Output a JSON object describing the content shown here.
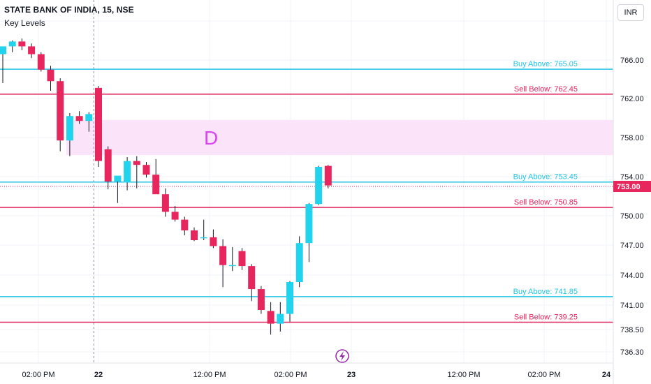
{
  "header": {
    "title": "STATE BANK OF INDIA, 15, NSE",
    "indicator": "Key Levels",
    "currency": "INR"
  },
  "colors": {
    "up": "#22d3ee",
    "down": "#e8265e",
    "buy_line": "#22c3e6",
    "sell_line": "#e0245e",
    "zone": "#fbe3fa",
    "zone_label": "#d946ef",
    "grid": "#f0f3fa",
    "axis_text": "#131722",
    "price_badge": "#e8265e",
    "event_icon": "#9c27b0"
  },
  "chart_data": {
    "type": "candlestick",
    "title": "STATE BANK OF INDIA, 15, NSE",
    "ylim": [
      735.5,
      770
    ],
    "y_ticks": [
      "736.30",
      "738.50",
      "741.00",
      "744.00",
      "747.00",
      "750.00",
      "754.00",
      "758.00",
      "762.00",
      "766.00"
    ],
    "x_ticks": [
      "02:00 PM",
      "22",
      "12:00 PM",
      "02:00 PM",
      "23",
      "12:00 PM",
      "02:00 PM",
      "24"
    ],
    "last_price": "753.00",
    "levels": [
      {
        "label": "Buy Above: 765.05",
        "value": 765.05,
        "kind": "buy"
      },
      {
        "label": "Sell Below: 762.45",
        "value": 762.45,
        "kind": "sell"
      },
      {
        "label": "Buy Above: 753.45",
        "value": 753.45,
        "kind": "buy"
      },
      {
        "label": "Sell Below: 750.85",
        "value": 750.85,
        "kind": "sell"
      },
      {
        "label": "Buy Above: 741.85",
        "value": 741.85,
        "kind": "buy"
      },
      {
        "label": "Sell Below: 739.25",
        "value": 739.25,
        "kind": "sell"
      }
    ],
    "zone": {
      "label": "D",
      "from": 756.2,
      "to": 759.8
    },
    "session_break_index": 10,
    "candles": [
      {
        "o": 766.6,
        "h": 767.2,
        "l": 763.6,
        "c": 767.4
      },
      {
        "o": 767.4,
        "h": 768.0,
        "l": 766.8,
        "c": 767.9
      },
      {
        "o": 767.9,
        "h": 768.2,
        "l": 767.0,
        "c": 767.4
      },
      {
        "o": 767.4,
        "h": 767.7,
        "l": 766.2,
        "c": 766.6
      },
      {
        "o": 766.6,
        "h": 766.8,
        "l": 764.8,
        "c": 765.0
      },
      {
        "o": 765.0,
        "h": 765.4,
        "l": 762.8,
        "c": 763.8
      },
      {
        "o": 763.8,
        "h": 764.1,
        "l": 756.6,
        "c": 757.7
      },
      {
        "o": 757.7,
        "h": 760.5,
        "l": 756.1,
        "c": 760.2
      },
      {
        "o": 760.2,
        "h": 760.7,
        "l": 759.4,
        "c": 759.7
      },
      {
        "o": 759.7,
        "h": 760.6,
        "l": 758.6,
        "c": 760.4
      },
      {
        "o": 763.1,
        "h": 763.3,
        "l": 755.0,
        "c": 755.6
      },
      {
        "o": 756.8,
        "h": 757.1,
        "l": 752.7,
        "c": 753.5
      },
      {
        "o": 753.5,
        "h": 753.8,
        "l": 751.3,
        "c": 754.1
      },
      {
        "o": 753.4,
        "h": 756.0,
        "l": 752.6,
        "c": 755.6
      },
      {
        "o": 755.6,
        "h": 756.1,
        "l": 752.8,
        "c": 755.2
      },
      {
        "o": 755.2,
        "h": 755.5,
        "l": 753.9,
        "c": 754.2
      },
      {
        "o": 754.2,
        "h": 755.8,
        "l": 752.3,
        "c": 752.2
      },
      {
        "o": 752.2,
        "h": 752.8,
        "l": 749.9,
        "c": 750.4
      },
      {
        "o": 750.4,
        "h": 751.0,
        "l": 749.4,
        "c": 749.6
      },
      {
        "o": 749.6,
        "h": 749.9,
        "l": 748.0,
        "c": 748.5
      },
      {
        "o": 748.5,
        "h": 748.8,
        "l": 747.4,
        "c": 747.5
      },
      {
        "o": 747.8,
        "h": 749.6,
        "l": 747.5,
        "c": 747.8
      },
      {
        "o": 747.8,
        "h": 748.6,
        "l": 746.7,
        "c": 746.9
      },
      {
        "o": 746.9,
        "h": 747.6,
        "l": 742.8,
        "c": 745.0
      },
      {
        "o": 745.0,
        "h": 746.8,
        "l": 744.4,
        "c": 745.0
      },
      {
        "o": 746.4,
        "h": 746.7,
        "l": 744.5,
        "c": 744.9
      },
      {
        "o": 744.9,
        "h": 745.1,
        "l": 741.4,
        "c": 742.6
      },
      {
        "o": 742.6,
        "h": 742.9,
        "l": 740.1,
        "c": 740.5
      },
      {
        "o": 740.4,
        "h": 741.3,
        "l": 738.0,
        "c": 739.1
      },
      {
        "o": 739.1,
        "h": 741.3,
        "l": 738.3,
        "c": 740.1
      },
      {
        "o": 740.1,
        "h": 743.4,
        "l": 739.3,
        "c": 743.3
      },
      {
        "o": 743.3,
        "h": 747.9,
        "l": 742.8,
        "c": 747.2
      },
      {
        "o": 747.2,
        "h": 751.3,
        "l": 745.3,
        "c": 751.2
      },
      {
        "o": 751.2,
        "h": 755.1,
        "l": 751.1,
        "c": 755.0
      },
      {
        "o": 755.1,
        "h": 755.2,
        "l": 752.8,
        "c": 753.1
      }
    ]
  }
}
